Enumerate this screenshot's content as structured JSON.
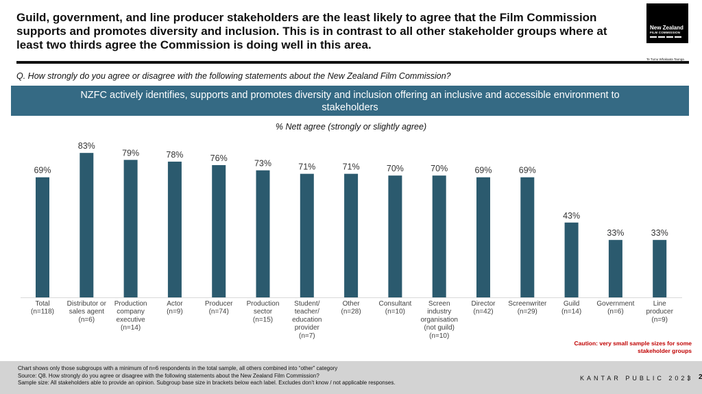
{
  "headline": "Guild, government, and line producer stakeholders are the least likely to agree that the Film Commission supports and promotes diversity and inclusion. This is in contrast to all other stakeholder groups where at least two thirds agree the Commission is doing well in this area.",
  "logo": {
    "name": "New Zealand",
    "sub": "FILM COMMISSION",
    "tagline": "Te Tumu Whakaata Taonga"
  },
  "question": "Q. How strongly do you agree or disagree with the following statements about the New Zealand Film Commission?",
  "banner": "NZFC actively identifies, supports and promotes diversity and inclusion offering an inclusive and accessible environment to stakeholders",
  "caution": "Caution: very small sample sizes for some stakeholder groups",
  "chart_data": {
    "type": "bar",
    "title": "% Nett agree (strongly or slightly agree)",
    "categories": [
      [
        "Total",
        "(n=118)"
      ],
      [
        "Distributor or",
        "sales agent",
        "(n=6)"
      ],
      [
        "Production",
        "company",
        "executive",
        "(n=14)"
      ],
      [
        "Actor",
        "(n=9)"
      ],
      [
        "Producer",
        "(n=74)"
      ],
      [
        "Production",
        "sector",
        "(n=15)"
      ],
      [
        "Student/",
        "teacher/",
        "education",
        "provider",
        "(n=7)"
      ],
      [
        "Other",
        "(n=28)"
      ],
      [
        "Consultant",
        "(n=10)"
      ],
      [
        "Screen",
        "industry",
        "organisation",
        "(not guild)",
        "(n=10)"
      ],
      [
        "Director",
        "(n=42)"
      ],
      [
        "Screenwriter",
        "(n=29)"
      ],
      [
        "Guild",
        "(n=14)"
      ],
      [
        "Government",
        "(n=6)"
      ],
      [
        "Line",
        "producer",
        "(n=9)"
      ]
    ],
    "values": [
      69,
      83,
      79,
      78,
      76,
      73,
      71,
      71,
      70,
      70,
      69,
      69,
      43,
      33,
      33
    ],
    "value_labels": [
      "69%",
      "83%",
      "79%",
      "78%",
      "76%",
      "73%",
      "71%",
      "71%",
      "70%",
      "70%",
      "69%",
      "69%",
      "43%",
      "33%",
      "33%"
    ],
    "ylim": [
      0,
      100
    ],
    "bar_color": "#2b5a6e",
    "grid": false,
    "legend": "none"
  },
  "footer": {
    "notes": [
      "Chart shows only those subgroups with a minimum of n=6 respondents in the total sample, all others combined into “other” category",
      "Source: Q8. How strongly do you agree or disagree with the following statements about the New Zealand Film Commission?",
      "Sample size: All stakeholders able to provide an opinion. Subgroup base size in brackets below each label. Excludes don’t know / not applicable responses."
    ],
    "brand": "KANTAR PUBLIC 2023",
    "separator": "|",
    "page": "2"
  },
  "colors": {
    "banner": "#356a84",
    "caution": "#c00000",
    "footer": "#d3d3d3"
  }
}
